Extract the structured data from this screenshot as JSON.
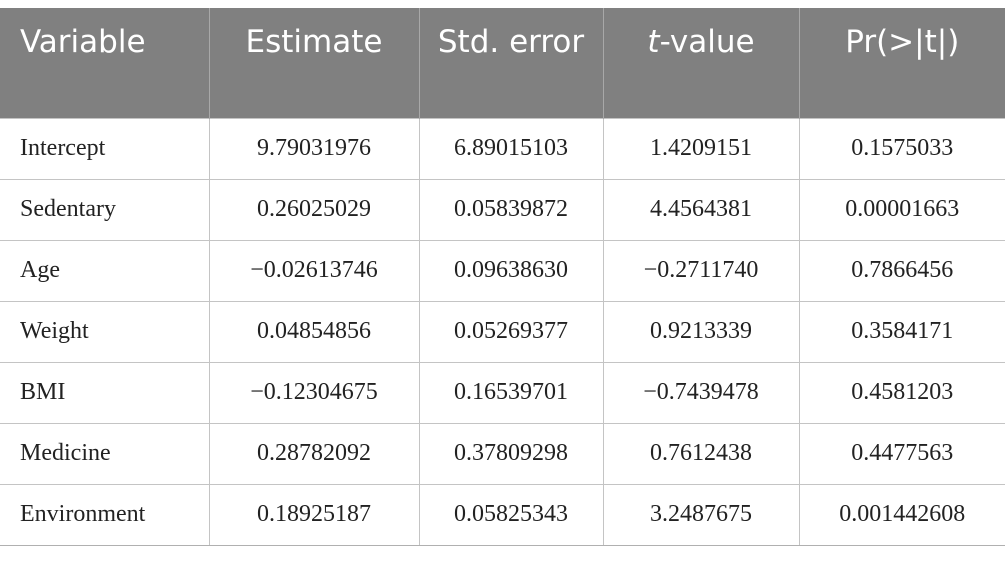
{
  "table": {
    "headers": {
      "variable": "Variable",
      "estimate": "Estimate",
      "std_error": "Std. error",
      "t_value_italic": "t",
      "t_value_rest": "-value",
      "p_value": "Pr(>|t|)"
    },
    "rows": [
      {
        "variable": "Intercept",
        "estimate": "9.79031976",
        "std_error": "6.89015103",
        "t_value": "1.4209151",
        "p_value": "0.1575033"
      },
      {
        "variable": "Sedentary",
        "estimate": "0.26025029",
        "std_error": "0.05839872",
        "t_value": "4.4564381",
        "p_value": "0.00001663"
      },
      {
        "variable": "Age",
        "estimate": "−0.02613746",
        "std_error": "0.09638630",
        "t_value": "−0.2711740",
        "p_value": "0.7866456"
      },
      {
        "variable": "Weight",
        "estimate": "0.04854856",
        "std_error": "0.05269377",
        "t_value": "0.9213339",
        "p_value": "0.3584171"
      },
      {
        "variable": "BMI",
        "estimate": "−0.12304675",
        "std_error": "0.16539701",
        "t_value": "−0.7439478",
        "p_value": "0.4581203"
      },
      {
        "variable": "Medicine",
        "estimate": "0.28782092",
        "std_error": "0.37809298",
        "t_value": "0.7612438",
        "p_value": "0.4477563"
      },
      {
        "variable": "Environment",
        "estimate": "0.18925187",
        "std_error": "0.05825343",
        "t_value": "3.2487675",
        "p_value": "0.001442608"
      }
    ]
  }
}
